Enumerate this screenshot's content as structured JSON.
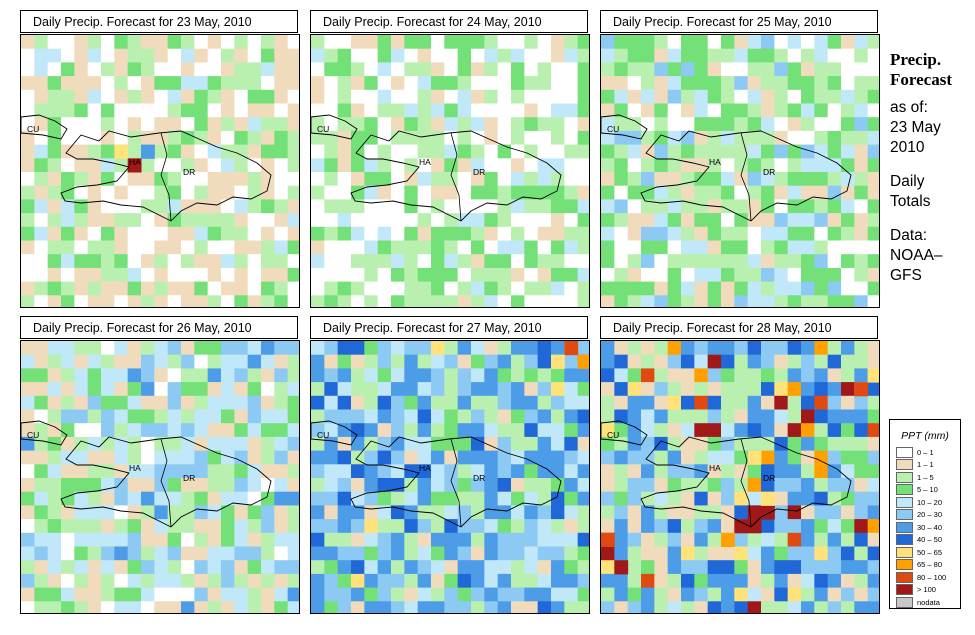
{
  "panels": [
    {
      "title": "Daily Precip. Forecast for  23 May, 2010"
    },
    {
      "title": "Daily Precip. Forecast for  24 May, 2010"
    },
    {
      "title": "Daily Precip. Forecast for  25 May, 2010"
    },
    {
      "title": "Daily Precip. Forecast for  26 May, 2010"
    },
    {
      "title": "Daily Precip. Forecast for  27 May, 2010"
    },
    {
      "title": "Daily Precip. Forecast for  28 May, 2010"
    }
  ],
  "map_labels": {
    "cuba": "CU",
    "haiti": "HA",
    "dr": "DR"
  },
  "side": {
    "title1": "Precip.",
    "title2": "Forecast",
    "asof_label": "as of:",
    "date1": "23 May",
    "date2": "2010",
    "totals1": "Daily",
    "totals2": "Totals",
    "data1": "Data:",
    "data2": "NOAA–",
    "data3": "GFS"
  },
  "legend": {
    "title": "PPT (mm)",
    "items": [
      {
        "label": "0 – 1",
        "color": "#ffffff"
      },
      {
        "label": "1 – 1",
        "color": "#f0dcbc"
      },
      {
        "label": "1 – 5",
        "color": "#b9f0b0"
      },
      {
        "label": "5 – 10",
        "color": "#74e078"
      },
      {
        "label": "10 – 20",
        "color": "#c0e8f8"
      },
      {
        "label": "20 – 30",
        "color": "#8ccaf4"
      },
      {
        "label": "30 – 40",
        "color": "#4c9ce8"
      },
      {
        "label": "40 – 50",
        "color": "#2068d8"
      },
      {
        "label": "50 – 65",
        "color": "#ffe37a"
      },
      {
        "label": "65 – 80",
        "color": "#ffa000"
      },
      {
        "label": "80 – 100",
        "color": "#e04a10"
      },
      {
        "label": "> 100",
        "color": "#a01818"
      },
      {
        "label": "nodata",
        "color": "#c8c8c8"
      }
    ]
  }
}
